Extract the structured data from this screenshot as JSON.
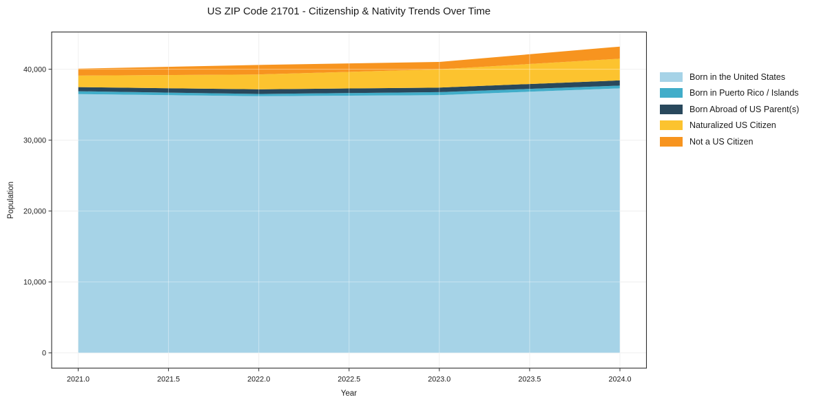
{
  "chart_data": {
    "type": "area",
    "stacked": true,
    "title": "US ZIP Code 21701 - Citizenship & Nativity Trends Over Time",
    "xlabel": "Year",
    "ylabel": "Population",
    "x": [
      2021,
      2022,
      2023,
      2024
    ],
    "series": [
      {
        "name": "Born in the United States",
        "color": "#a6d3e7",
        "values": [
          36500,
          36200,
          36350,
          37300
        ]
      },
      {
        "name": "Born in Puerto Rico / Islands",
        "color": "#41adc9",
        "values": [
          400,
          320,
          420,
          390
        ]
      },
      {
        "name": "Born Abroad of US Parent(s)",
        "color": "#29485c",
        "values": [
          580,
          650,
          640,
          740
        ]
      },
      {
        "name": "Naturalized US Citizen",
        "color": "#fcc32f",
        "values": [
          1620,
          2090,
          2580,
          3060
        ]
      },
      {
        "name": "Not a US Citizen",
        "color": "#f7941f",
        "values": [
          980,
          1340,
          1040,
          1700
        ]
      }
    ],
    "totals": [
      40080,
      40600,
      41030,
      43190
    ],
    "xlim": [
      2020.853,
      2024.147
    ],
    "ylim": [
      -2150,
      45250
    ],
    "x_ticks": [
      2021.0,
      2021.5,
      2022.0,
      2022.5,
      2023.0,
      2023.5,
      2024.0
    ],
    "x_tick_labels": [
      "2021.0",
      "2021.5",
      "2022.0",
      "2022.5",
      "2023.0",
      "2023.5",
      "2024.0"
    ],
    "y_ticks": [
      0,
      10000,
      20000,
      30000,
      40000
    ],
    "y_tick_labels": [
      "0",
      "10,000",
      "20,000",
      "30,000",
      "40,000"
    ],
    "grid": true,
    "legend_position": "outside-right-top",
    "colors": {
      "grid": "#e8e8e8",
      "spine": "#2b2b2b",
      "text": "#1a1a1a",
      "background": "#ffffff"
    }
  }
}
